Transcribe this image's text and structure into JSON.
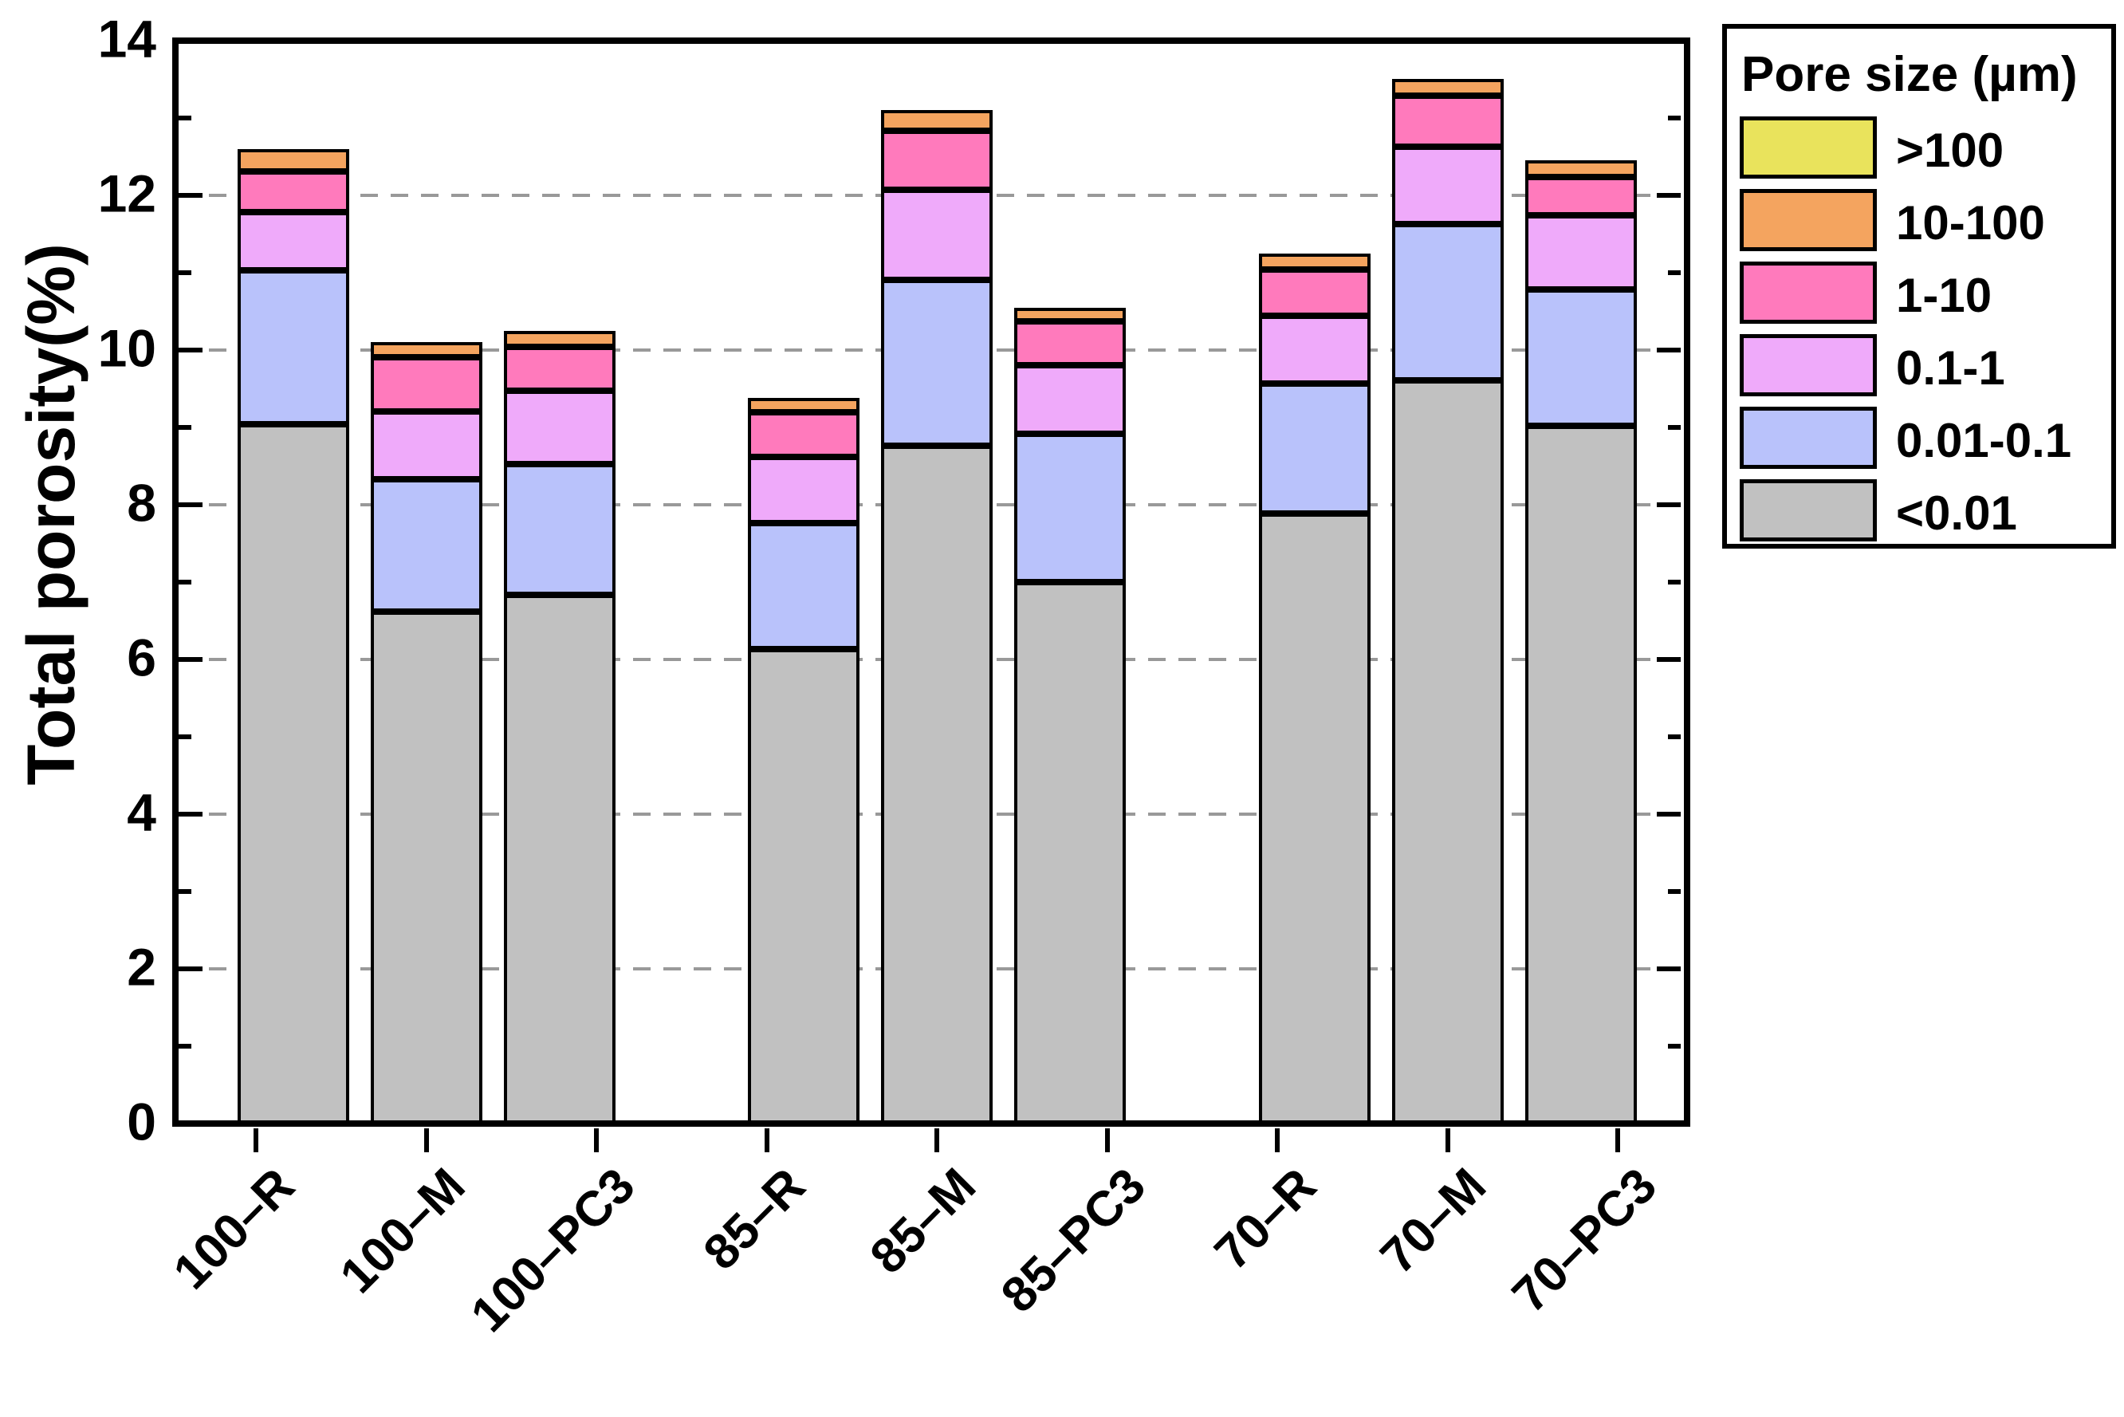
{
  "chart_data": {
    "type": "bar",
    "stacked": true,
    "title": "",
    "xlabel": "",
    "ylabel": "Total porosity(%)",
    "ylim": [
      0,
      14
    ],
    "yticks_major": [
      0,
      2,
      4,
      6,
      8,
      10,
      12,
      14
    ],
    "yticks_minor": [
      1,
      3,
      5,
      7,
      9,
      11,
      13
    ],
    "grid_values": [
      2,
      4,
      6,
      8,
      10,
      12
    ],
    "grid_style": "dashed",
    "grid_color": "#999999",
    "categories": [
      "100–R",
      "100–M",
      "100–PC3",
      "85–R",
      "85–M",
      "85–PC3",
      "70–R",
      "70–M",
      "70–PC3"
    ],
    "series": [
      {
        "name": "<0.01",
        "color": "#C1C1C1",
        "values": [
          9.04,
          6.62,
          6.84,
          6.13,
          8.76,
          7.0,
          7.89,
          9.61,
          9.02
        ]
      },
      {
        "name": "0.01-0.1",
        "color": "#B9C2FB",
        "values": [
          1.99,
          1.71,
          1.69,
          1.63,
          2.15,
          1.92,
          1.68,
          2.02,
          1.76
        ]
      },
      {
        "name": "0.1-1",
        "color": "#EFAAFA",
        "values": [
          0.75,
          0.88,
          0.94,
          0.86,
          1.16,
          0.88,
          0.87,
          1.0,
          0.96
        ]
      },
      {
        "name": "1-10",
        "color": "#FF7ABC",
        "values": [
          0.53,
          0.7,
          0.57,
          0.58,
          0.77,
          0.57,
          0.6,
          0.66,
          0.5
        ]
      },
      {
        "name": "10-100",
        "color": "#F4A45F",
        "values": [
          0.29,
          0.19,
          0.21,
          0.18,
          0.26,
          0.18,
          0.21,
          0.22,
          0.21
        ]
      },
      {
        "name": ">100",
        "color": "#E9E35C",
        "values": [
          0,
          0,
          0,
          0,
          0,
          0,
          0,
          0,
          0
        ]
      }
    ],
    "totals": [
      12.6,
      10.1,
      10.25,
      9.38,
      13.1,
      10.55,
      11.25,
      13.51,
      12.45
    ],
    "legend": {
      "title": "Pore size (µm)",
      "position": "top-right",
      "entries": [
        {
          "label": ">100",
          "color": "#E9E35C"
        },
        {
          "label": "10-100",
          "color": "#F4A45F"
        },
        {
          "label": "1-10",
          "color": "#FF7ABC"
        },
        {
          "label": "0.1-1",
          "color": "#EFAAFA"
        },
        {
          "label": "0.01-0.1",
          "color": "#B9C2FB"
        },
        {
          "label": "<0.01",
          "color": "#C1C1C1"
        }
      ]
    }
  }
}
